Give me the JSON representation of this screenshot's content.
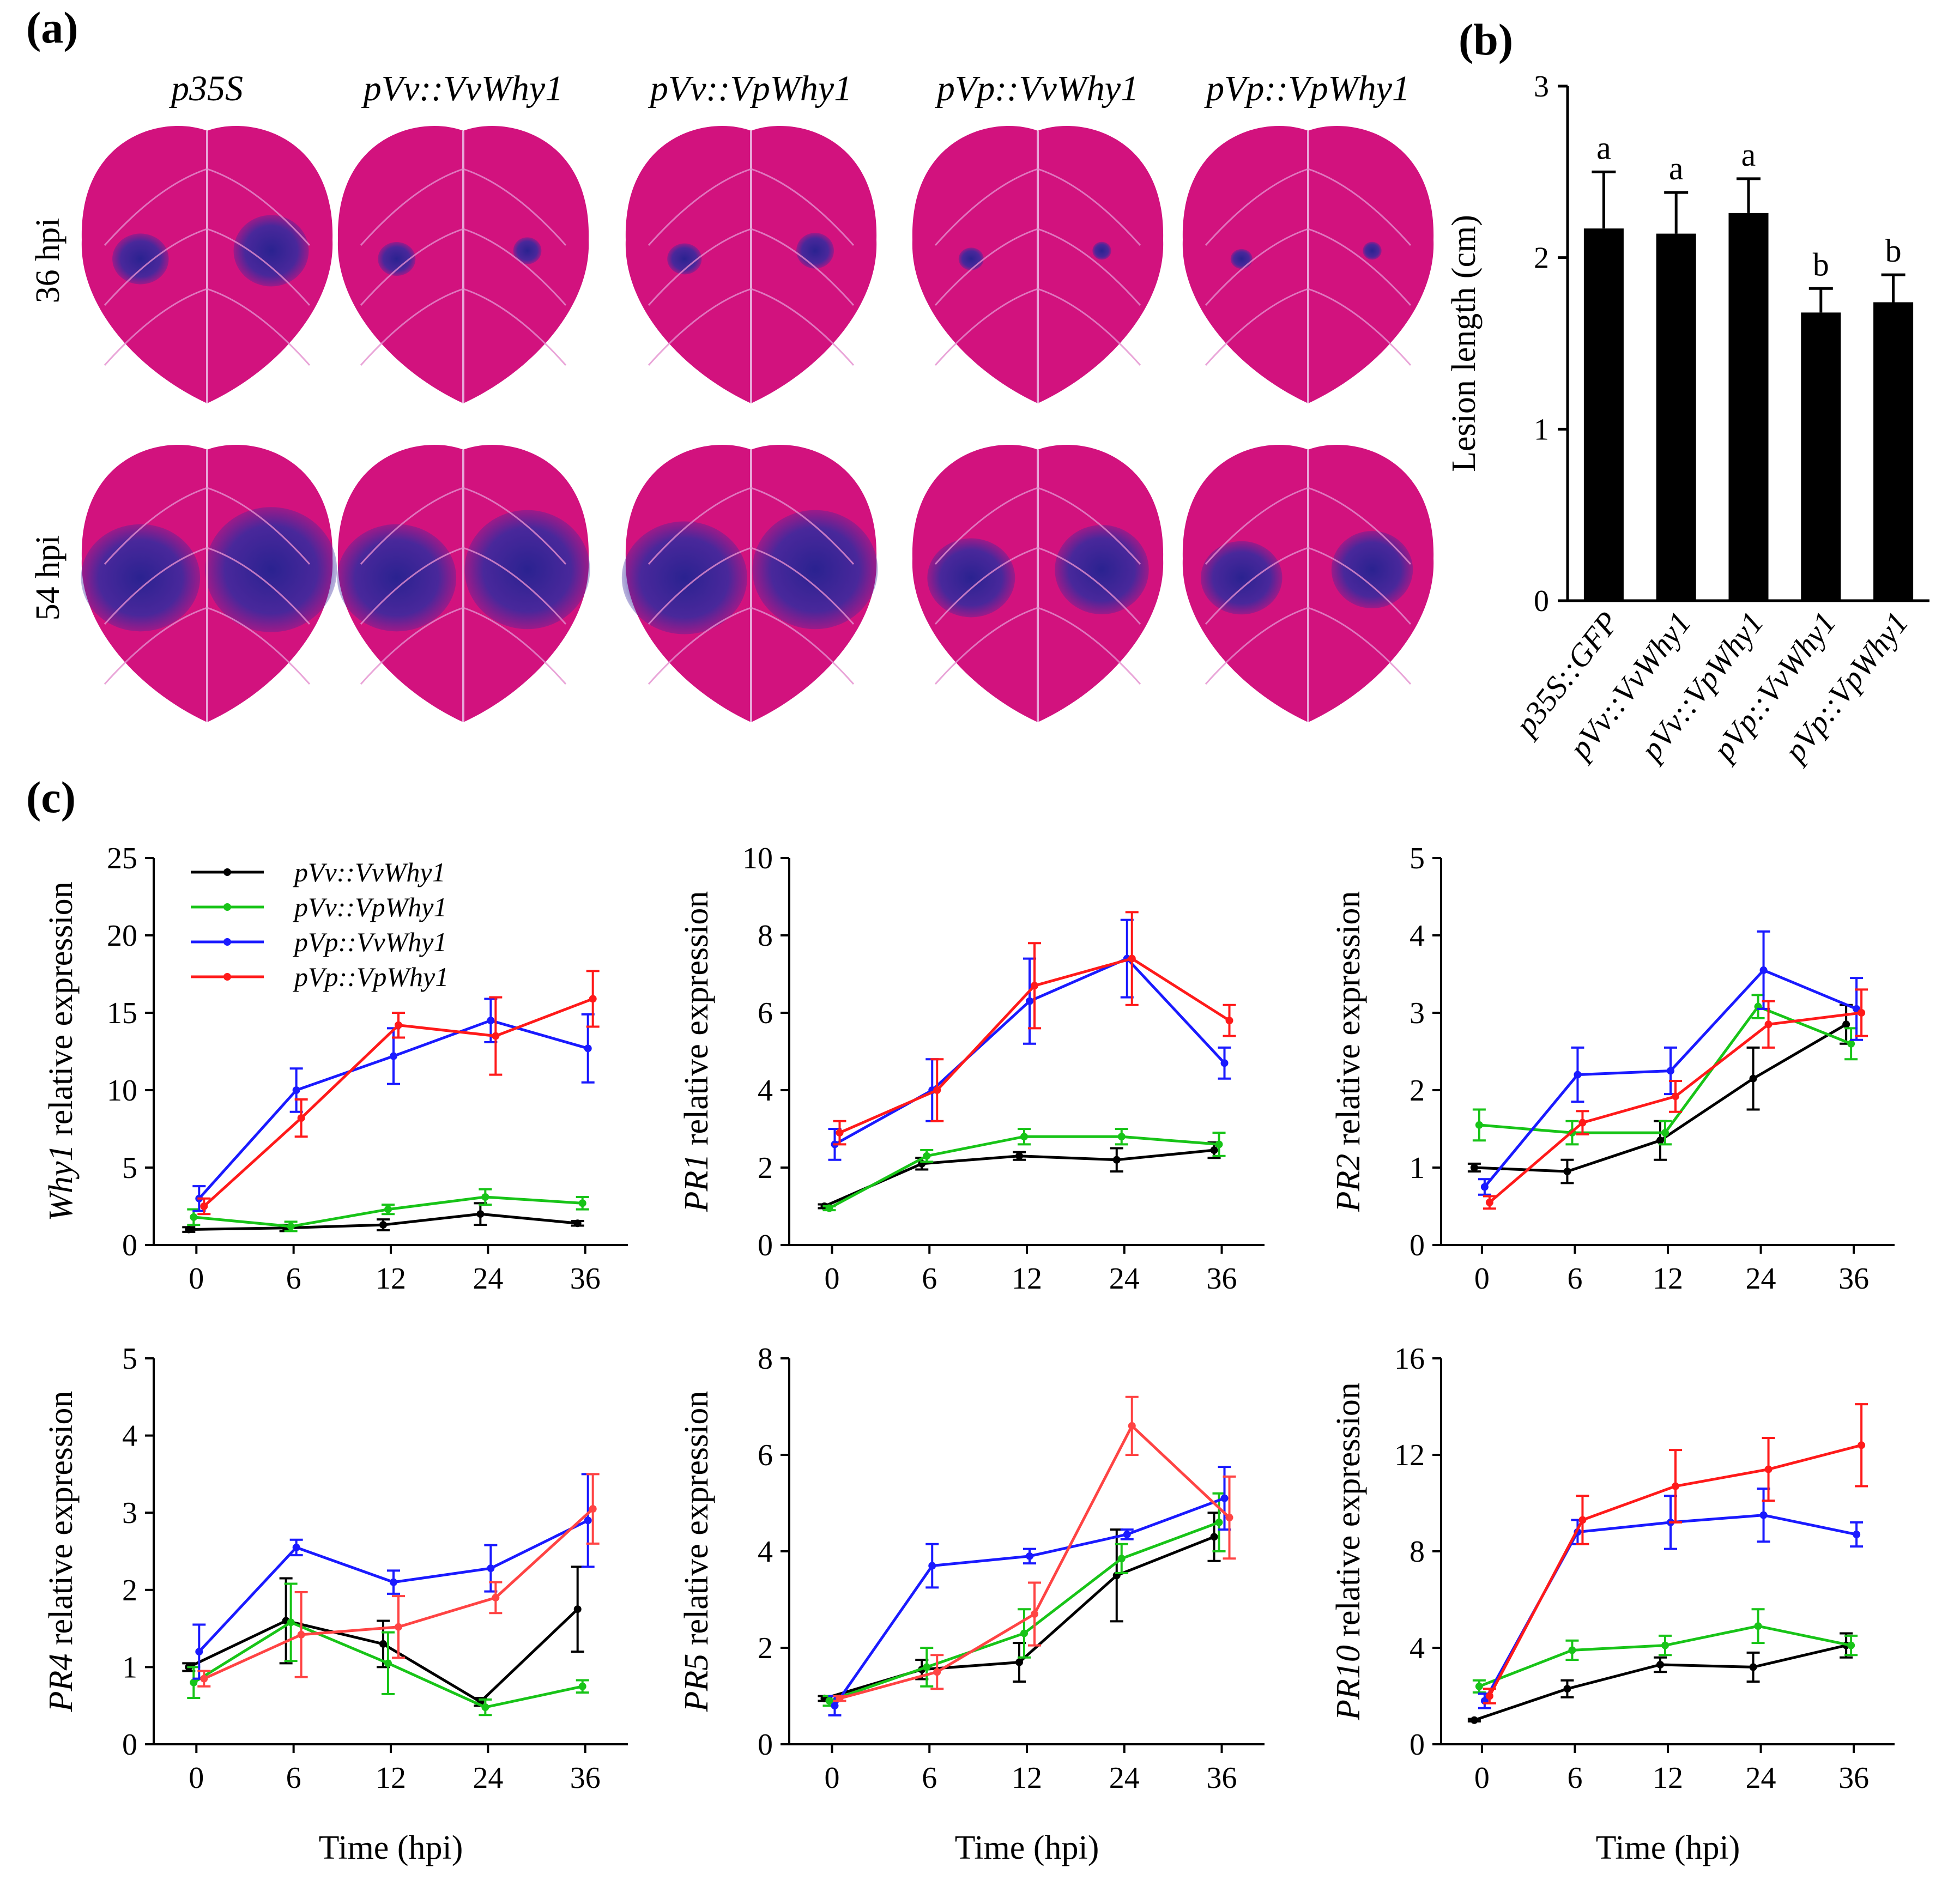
{
  "panel_labels": {
    "a": "(a)",
    "b": "(b)",
    "c": "(c)"
  },
  "panel_a": {
    "columns": [
      "p35S",
      "pVv::VvWhy1",
      "pVv::VpWhy1",
      "pVp::VvWhy1",
      "pVp::VpWhy1"
    ],
    "rows": [
      "36 hpi",
      "54 hpi"
    ],
    "leaf_color": "#d2127e",
    "lesion_color": "#3a2a9e",
    "lesion_diameters_cm": {
      "36 hpi": [
        [
          0.9,
          1.2
        ],
        [
          0.6,
          0.45
        ],
        [
          0.55,
          0.6
        ],
        [
          0.4,
          0.3
        ],
        [
          0.35,
          0.3
        ]
      ],
      "54 hpi": [
        [
          1.9,
          2.1
        ],
        [
          1.9,
          2.0
        ],
        [
          2.0,
          2.0
        ],
        [
          1.4,
          1.5
        ],
        [
          1.3,
          1.3
        ]
      ]
    }
  },
  "colors": {
    "black": "#000000",
    "green": "#18c418",
    "blue": "#1a1aff",
    "red": "#ff1a1a"
  },
  "chart_data": [
    {
      "id": "b",
      "type": "bar",
      "title": "",
      "xlabel": "",
      "ylabel": "Lesion length (cm)",
      "categories": [
        "p35S::GFP",
        "pVv::VvWhy1",
        "pVv::VpWhy1",
        "pVp::VvWhy1",
        "pVp::VpWhy1"
      ],
      "values": [
        2.17,
        2.14,
        2.26,
        1.68,
        1.74
      ],
      "errors": [
        0.33,
        0.24,
        0.2,
        0.14,
        0.16
      ],
      "significance": [
        "a",
        "a",
        "a",
        "b",
        "b"
      ],
      "ylim": [
        0,
        3
      ],
      "yticks": [
        "0",
        "1",
        "2",
        "3"
      ]
    },
    {
      "id": "c1",
      "type": "line",
      "ylabel_gene": "Why1",
      "ylabel_rest": " relative expression",
      "xlabel": "",
      "x": [
        "0",
        "6",
        "12",
        "24",
        "36"
      ],
      "ylim": [
        0,
        25
      ],
      "yticks": [
        "0",
        "5",
        "10",
        "15",
        "20",
        "25"
      ],
      "series": [
        {
          "name": "pVv::VvWhy1",
          "color": "#000000",
          "marker": "circle",
          "values": [
            1,
            1.1,
            1.3,
            2,
            1.4
          ],
          "errors": [
            0.15,
            0.2,
            0.35,
            0.7,
            0.15
          ]
        },
        {
          "name": "pVv::VpWhy1",
          "color": "#18c418",
          "marker": "square",
          "values": [
            1.8,
            1.2,
            2.3,
            3.1,
            2.7
          ],
          "errors": [
            0.5,
            0.3,
            0.3,
            0.5,
            0.4
          ]
        },
        {
          "name": "pVp::VvWhy1",
          "color": "#1a1aff",
          "marker": "triangle",
          "values": [
            3,
            10,
            12.2,
            14.5,
            12.7
          ],
          "errors": [
            0.8,
            1.4,
            1.8,
            1.4,
            2.2
          ]
        },
        {
          "name": "pVp::VpWhy1",
          "color": "#ff1a1a",
          "marker": "inverted-triangle",
          "values": [
            2.5,
            8.2,
            14.2,
            13.5,
            15.9
          ],
          "errors": [
            0.5,
            1.2,
            0.8,
            2.5,
            1.8
          ]
        }
      ]
    },
    {
      "id": "c2",
      "type": "line",
      "ylabel_gene": "PR1",
      "ylabel_rest": " relative expression",
      "xlabel": "",
      "x": [
        "0",
        "6",
        "12",
        "24",
        "36"
      ],
      "ylim": [
        0,
        10
      ],
      "yticks": [
        "0",
        "2",
        "4",
        "6",
        "8",
        "10"
      ],
      "series": [
        {
          "name": "pVv::VvWhy1",
          "color": "#000000",
          "values": [
            1,
            2.1,
            2.3,
            2.2,
            2.45
          ],
          "errors": [
            0.05,
            0.15,
            0.1,
            0.3,
            0.2
          ]
        },
        {
          "name": "pVv::VpWhy1",
          "color": "#18c418",
          "values": [
            0.95,
            2.3,
            2.8,
            2.8,
            2.6
          ],
          "errors": [
            0.05,
            0.15,
            0.2,
            0.2,
            0.3
          ]
        },
        {
          "name": "pVp::VvWhy1",
          "color": "#1a1aff",
          "values": [
            2.6,
            4,
            6.3,
            7.4,
            4.7
          ],
          "errors": [
            0.4,
            0.8,
            1.1,
            1,
            0.4
          ]
        },
        {
          "name": "pVp::VpWhy1",
          "color": "#ff1a1a",
          "values": [
            2.9,
            4,
            6.7,
            7.4,
            5.8
          ],
          "errors": [
            0.3,
            0.8,
            1.1,
            1.2,
            0.4
          ]
        }
      ]
    },
    {
      "id": "c3",
      "type": "line",
      "ylabel_gene": "PR2",
      "ylabel_rest": " relative expression",
      "xlabel": "",
      "x": [
        "0",
        "6",
        "12",
        "24",
        "36"
      ],
      "ylim": [
        0,
        5
      ],
      "yticks": [
        "0",
        "1",
        "2",
        "3",
        "4",
        "5"
      ],
      "series": [
        {
          "name": "pVv::VvWhy1",
          "color": "#000000",
          "values": [
            1,
            0.95,
            1.35,
            2.15,
            2.85
          ],
          "errors": [
            0.05,
            0.15,
            0.25,
            0.4,
            0.25
          ]
        },
        {
          "name": "pVv::VpWhy1",
          "color": "#18c418",
          "values": [
            1.55,
            1.45,
            1.45,
            3.08,
            2.6
          ],
          "errors": [
            0.2,
            0.15,
            0.15,
            0.15,
            0.2
          ]
        },
        {
          "name": "pVp::VvWhy1",
          "color": "#1a1aff",
          "values": [
            0.75,
            2.2,
            2.25,
            3.55,
            3.05
          ],
          "errors": [
            0.1,
            0.35,
            0.3,
            0.5,
            0.4
          ]
        },
        {
          "name": "pVp::VpWhy1",
          "color": "#ff1a1a",
          "values": [
            0.55,
            1.58,
            1.92,
            2.85,
            3
          ],
          "errors": [
            0.08,
            0.15,
            0.2,
            0.3,
            0.3
          ]
        }
      ]
    },
    {
      "id": "c4",
      "type": "line",
      "ylabel_gene": "PR4",
      "ylabel_rest": " relative expression",
      "xlabel": "Time (hpi)",
      "x": [
        "0",
        "6",
        "12",
        "24",
        "36"
      ],
      "ylim": [
        0,
        5
      ],
      "yticks": [
        "0",
        "1",
        "2",
        "3",
        "4",
        "5"
      ],
      "series": [
        {
          "name": "pVv::VvWhy1",
          "color": "#000000",
          "values": [
            1,
            1.6,
            1.3,
            0.55,
            1.75
          ],
          "errors": [
            0.05,
            0.55,
            0.3,
            0.05,
            0.55
          ]
        },
        {
          "name": "pVv::VpWhy1",
          "color": "#18c418",
          "values": [
            0.8,
            1.58,
            1.05,
            0.48,
            0.75
          ],
          "errors": [
            0.2,
            0.5,
            0.4,
            0.1,
            0.08
          ]
        },
        {
          "name": "pVp::VvWhy1",
          "color": "#1a1aff",
          "values": [
            1.2,
            2.55,
            2.1,
            2.28,
            2.9
          ],
          "errors": [
            0.35,
            0.1,
            0.15,
            0.3,
            0.6
          ]
        },
        {
          "name": "pVp::VpWhy1",
          "color": "#ff4444",
          "values": [
            0.85,
            1.42,
            1.52,
            1.9,
            3.05
          ],
          "errors": [
            0.1,
            0.55,
            0.4,
            0.2,
            0.45
          ]
        }
      ]
    },
    {
      "id": "c5",
      "type": "line",
      "ylabel_gene": "PR5",
      "ylabel_rest": " relative expression",
      "xlabel": "Time (hpi)",
      "x": [
        "0",
        "6",
        "12",
        "24",
        "36"
      ],
      "ylim": [
        0,
        8
      ],
      "yticks": [
        "0",
        "2",
        "4",
        "6",
        "8"
      ],
      "series": [
        {
          "name": "pVv::VvWhy1",
          "color": "#000000",
          "values": [
            0.95,
            1.55,
            1.7,
            3.5,
            4.3
          ],
          "errors": [
            0.05,
            0.2,
            0.4,
            0.95,
            0.5
          ]
        },
        {
          "name": "pVv::VpWhy1",
          "color": "#18c418",
          "values": [
            0.9,
            1.6,
            2.3,
            3.85,
            4.6
          ],
          "errors": [
            0.1,
            0.4,
            0.5,
            0.3,
            0.6
          ]
        },
        {
          "name": "pVp::VvWhy1",
          "color": "#1a1aff",
          "values": [
            0.8,
            3.7,
            3.9,
            4.35,
            5.1
          ],
          "errors": [
            0.2,
            0.45,
            0.15,
            0.1,
            0.65
          ]
        },
        {
          "name": "pVp::VpWhy1",
          "color": "#ff4444",
          "values": [
            0.95,
            1.5,
            2.7,
            6.6,
            4.7
          ],
          "errors": [
            0.05,
            0.35,
            0.65,
            0.6,
            0.85
          ]
        }
      ]
    },
    {
      "id": "c6",
      "type": "line",
      "ylabel_gene": "PR10",
      "ylabel_rest": " relative expression",
      "xlabel": "Time (hpi)",
      "x": [
        "0",
        "6",
        "12",
        "24",
        "36"
      ],
      "ylim": [
        0,
        16
      ],
      "yticks": [
        "0",
        "4",
        "8",
        "12",
        "16"
      ],
      "series": [
        {
          "name": "pVv::VvWhy1",
          "color": "#000000",
          "values": [
            1,
            2.3,
            3.3,
            3.2,
            4.1
          ],
          "errors": [
            0.05,
            0.35,
            0.3,
            0.6,
            0.5
          ]
        },
        {
          "name": "pVv::VpWhy1",
          "color": "#18c418",
          "values": [
            2.4,
            3.9,
            4.1,
            4.9,
            4.1
          ],
          "errors": [
            0.25,
            0.4,
            0.4,
            0.7,
            0.4
          ]
        },
        {
          "name": "pVp::VvWhy1",
          "color": "#1a1aff",
          "values": [
            1.8,
            8.8,
            9.2,
            9.5,
            8.7
          ],
          "errors": [
            0.3,
            0.5,
            1.1,
            1.1,
            0.5
          ]
        },
        {
          "name": "pVp::VpWhy1",
          "color": "#ff1a1a",
          "values": [
            2,
            9.3,
            10.7,
            11.4,
            12.4
          ],
          "errors": [
            0.3,
            1,
            1.5,
            1.3,
            1.7
          ]
        }
      ]
    }
  ]
}
